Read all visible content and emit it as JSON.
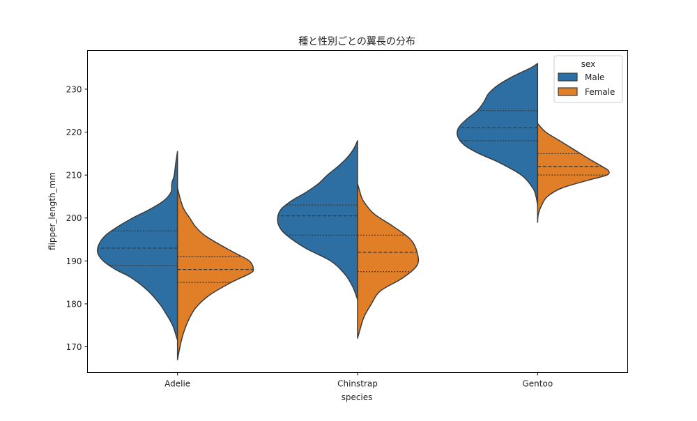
{
  "chart_data": {
    "type": "violin",
    "split": true,
    "title": "種と性別ごとの翼長の分布",
    "xlabel": "species",
    "ylabel": "flipper_length_mm",
    "categories": [
      "Adelie",
      "Chinstrap",
      "Gentoo"
    ],
    "ylim": [
      164,
      239
    ],
    "yticks": [
      170,
      180,
      190,
      200,
      210,
      220,
      230
    ],
    "legend": {
      "title": "sex",
      "placement": "top-right",
      "entries": [
        {
          "name": "Male",
          "color": "#2d6fa3"
        },
        {
          "name": "Female",
          "color": "#e07f27"
        }
      ]
    },
    "series": [
      {
        "name": "Male",
        "color": "#2d6fa3",
        "side": "left",
        "groups": [
          {
            "category": "Adelie",
            "min": 171.5,
            "max": 215.5,
            "q1": 189,
            "median": 193,
            "q3": 197,
            "profile": [
              [
                171.5,
                0
              ],
              [
                175,
                0.06
              ],
              [
                178,
                0.15
              ],
              [
                180,
                0.22
              ],
              [
                183,
                0.36
              ],
              [
                186,
                0.56
              ],
              [
                188,
                0.76
              ],
              [
                190,
                0.91
              ],
              [
                192,
                0.98
              ],
              [
                194,
                0.96
              ],
              [
                196,
                0.88
              ],
              [
                198,
                0.73
              ],
              [
                200,
                0.55
              ],
              [
                202,
                0.34
              ],
              [
                204,
                0.17
              ],
              [
                206,
                0.08
              ],
              [
                208,
                0.07
              ],
              [
                210,
                0.04
              ],
              [
                213,
                0.02
              ],
              [
                215.5,
                0
              ]
            ]
          },
          {
            "category": "Chinstrap",
            "min": 181,
            "max": 218,
            "q1": 196,
            "median": 200.5,
            "q3": 203,
            "profile": [
              [
                181,
                0
              ],
              [
                184,
                0.06
              ],
              [
                187,
                0.16
              ],
              [
                190,
                0.33
              ],
              [
                193,
                0.64
              ],
              [
                196,
                0.87
              ],
              [
                198,
                0.96
              ],
              [
                200,
                0.98
              ],
              [
                202,
                0.94
              ],
              [
                204,
                0.81
              ],
              [
                206,
                0.63
              ],
              [
                208,
                0.48
              ],
              [
                210,
                0.37
              ],
              [
                212,
                0.24
              ],
              [
                214,
                0.13
              ],
              [
                216,
                0.05
              ],
              [
                218,
                0
              ]
            ]
          },
          {
            "category": "Gentoo",
            "min": 203,
            "max": 236,
            "q1": 218,
            "median": 221,
            "q3": 225,
            "profile": [
              [
                203,
                0
              ],
              [
                205,
                0.02
              ],
              [
                207,
                0.06
              ],
              [
                210,
                0.2
              ],
              [
                213,
                0.48
              ],
              [
                215,
                0.72
              ],
              [
                217,
                0.9
              ],
              [
                219,
                0.98
              ],
              [
                221,
                0.97
              ],
              [
                223,
                0.87
              ],
              [
                225,
                0.74
              ],
              [
                227,
                0.66
              ],
              [
                229,
                0.6
              ],
              [
                231,
                0.48
              ],
              [
                233,
                0.3
              ],
              [
                235,
                0.08
              ],
              [
                236,
                0
              ]
            ]
          }
        ]
      },
      {
        "name": "Female",
        "color": "#e07f27",
        "side": "right",
        "groups": [
          {
            "category": "Adelie",
            "min": 167,
            "max": 207,
            "q1": 185,
            "median": 188,
            "q3": 191,
            "profile": [
              [
                167,
                0
              ],
              [
                170,
                0.03
              ],
              [
                173,
                0.07
              ],
              [
                176,
                0.13
              ],
              [
                179,
                0.22
              ],
              [
                182,
                0.39
              ],
              [
                185,
                0.66
              ],
              [
                187,
                0.88
              ],
              [
                188,
                0.93
              ],
              [
                190,
                0.88
              ],
              [
                192,
                0.69
              ],
              [
                194,
                0.5
              ],
              [
                196,
                0.33
              ],
              [
                198,
                0.22
              ],
              [
                200,
                0.15
              ],
              [
                202,
                0.08
              ],
              [
                204,
                0.04
              ],
              [
                207,
                0
              ]
            ]
          },
          {
            "category": "Chinstrap",
            "min": 172,
            "max": 208,
            "q1": 187.5,
            "median": 192,
            "q3": 196,
            "profile": [
              [
                172,
                0
              ],
              [
                174,
                0.03
              ],
              [
                177,
                0.08
              ],
              [
                180,
                0.17
              ],
              [
                183,
                0.28
              ],
              [
                186,
                0.55
              ],
              [
                189,
                0.73
              ],
              [
                192,
                0.73
              ],
              [
                195,
                0.65
              ],
              [
                198,
                0.44
              ],
              [
                201,
                0.2
              ],
              [
                204,
                0.07
              ],
              [
                206,
                0.03
              ],
              [
                208,
                0
              ]
            ]
          },
          {
            "category": "Gentoo",
            "min": 199,
            "max": 222,
            "q1": 210,
            "median": 212,
            "q3": 215,
            "profile": [
              [
                199,
                0
              ],
              [
                201,
                0.01
              ],
              [
                203,
                0.05
              ],
              [
                205,
                0.12
              ],
              [
                207,
                0.3
              ],
              [
                209,
                0.66
              ],
              [
                210,
                0.85
              ],
              [
                211,
                0.87
              ],
              [
                212,
                0.79
              ],
              [
                214,
                0.61
              ],
              [
                216,
                0.44
              ],
              [
                218,
                0.27
              ],
              [
                220,
                0.1
              ],
              [
                222,
                0
              ]
            ]
          }
        ]
      }
    ]
  }
}
